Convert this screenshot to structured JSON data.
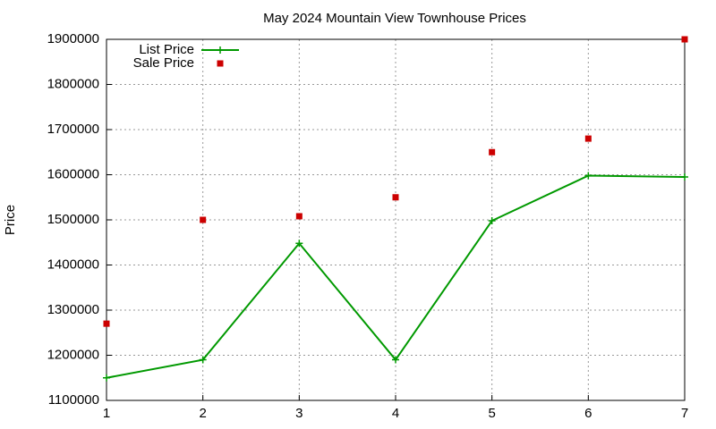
{
  "chart_data": {
    "type": "line",
    "title": "May 2024 Mountain View Townhouse Prices",
    "y_label": "Price",
    "x": [
      1,
      2,
      3,
      4,
      5,
      6,
      7
    ],
    "series": [
      {
        "name": "List Price",
        "color": "#009900",
        "style": "linespoints",
        "values": [
          1150000,
          1190000,
          1448000,
          1190000,
          1498000,
          1598000,
          1595000
        ]
      },
      {
        "name": "Sale Price",
        "color": "#cc0000",
        "style": "points",
        "values": [
          1270000,
          1500000,
          1508000,
          1550000,
          1650000,
          1680000,
          1900000
        ]
      }
    ],
    "xlim": [
      1,
      7
    ],
    "xticks": [
      1,
      2,
      3,
      4,
      5,
      6,
      7
    ],
    "ylim": [
      1100000,
      1900000
    ],
    "yticks": [
      1100000,
      1200000,
      1300000,
      1400000,
      1500000,
      1600000,
      1700000,
      1800000,
      1900000
    ],
    "grid": true,
    "legend": "top-left"
  }
}
